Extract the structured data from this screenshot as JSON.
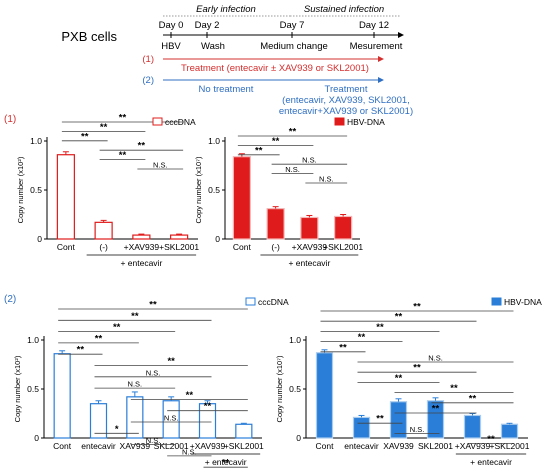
{
  "timeline": {
    "cells_label": "PXB cells",
    "phases": [
      "Early infection",
      "Sustained infection"
    ],
    "days": [
      "Day 0",
      "Day 2",
      "Day 7",
      "Day 12"
    ],
    "steps": [
      "HBV",
      "Wash",
      "Medium change",
      "Mesurement"
    ],
    "protocol1": {
      "marker": "(1)",
      "text": "Treatment (entecavir ± XAV939 or SKL2001)"
    },
    "protocol2": {
      "marker": "(2)",
      "no_treatment": "No treatment",
      "text_lines": [
        "Treatment",
        "(entecavir, XAV939, SKL2001,",
        "entecavir+XAV939 or SKL2001)"
      ]
    }
  },
  "section_markers": [
    "(1)",
    "(2)"
  ],
  "colors": {
    "red": "#e01b1b",
    "red_light": "#f4b6b6",
    "blue": "#2a7ed8",
    "blue_light": "#a8cbee",
    "protocol1": "#d42f2f",
    "protocol2": "#2f6fc2",
    "sig_line": "#444444"
  },
  "chart_data": [
    {
      "id": "p1-cccdna",
      "type": "bar",
      "panel": "(1)",
      "legend": "cccDNA",
      "legend_placement": "top-right",
      "style": "outline",
      "color": "#e01b1b",
      "ylabel": "Copy number (x10²)",
      "ylim": [
        0,
        1.0
      ],
      "yticks": [
        "0",
        "0.5",
        "1.0"
      ],
      "categories": [
        "Cont",
        "(-)",
        "+XAV939",
        "+SKL2001"
      ],
      "group_label": "+ entecavir",
      "group_span": [
        1,
        3
      ],
      "values": [
        0.86,
        0.17,
        0.04,
        0.04
      ],
      "errors": [
        0.03,
        0.02,
        0.01,
        0.01
      ],
      "significance": [
        {
          "from": 0,
          "to": 3,
          "label": "**"
        },
        {
          "from": 0,
          "to": 2,
          "label": "**"
        },
        {
          "from": 0,
          "to": 1,
          "label": "**"
        },
        {
          "from": 1,
          "to": 3,
          "label": "**"
        },
        {
          "from": 1,
          "to": 2,
          "label": "**"
        },
        {
          "from": 2,
          "to": 3,
          "label": "N.S."
        }
      ]
    },
    {
      "id": "p1-hbvdna",
      "type": "bar",
      "panel": "(1)",
      "legend": "HBV-DNA",
      "legend_placement": "top-right",
      "style": "filled",
      "color": "#e01b1b",
      "ylabel": "Copy number (x10⁷)",
      "ylim": [
        0,
        1.0
      ],
      "yticks": [
        "0",
        "0.5",
        "1.0"
      ],
      "categories": [
        "Cont",
        "(-)",
        "+XAV939",
        "+SKL2001"
      ],
      "group_label": "+ entecavir",
      "group_span": [
        1,
        3
      ],
      "values": [
        0.84,
        0.31,
        0.22,
        0.23
      ],
      "errors": [
        0.03,
        0.02,
        0.02,
        0.02
      ],
      "significance": [
        {
          "from": 0,
          "to": 3,
          "label": "**"
        },
        {
          "from": 0,
          "to": 2,
          "label": "**"
        },
        {
          "from": 0,
          "to": 1,
          "label": "**"
        },
        {
          "from": 1,
          "to": 3,
          "label": "N.S."
        },
        {
          "from": 1,
          "to": 2,
          "label": "N.S."
        },
        {
          "from": 2,
          "to": 3,
          "label": "N.S."
        }
      ]
    },
    {
      "id": "p2-cccdna",
      "type": "bar",
      "panel": "(2)",
      "legend": "cccDNA",
      "legend_placement": "top-right",
      "style": "outline",
      "color": "#2a7ed8",
      "ylabel": "Copy number (x10²)",
      "ylim": [
        0,
        1.0
      ],
      "yticks": [
        "0",
        "0.5",
        "1.0"
      ],
      "categories": [
        "Cont",
        "entecavir",
        "XAV939",
        "SKL2001",
        "+XAV939",
        "+SKL2001"
      ],
      "group_label": "+ entecavir",
      "group_span": [
        4,
        5
      ],
      "values": [
        0.86,
        0.35,
        0.42,
        0.38,
        0.35,
        0.14
      ],
      "errors": [
        0.03,
        0.03,
        0.05,
        0.04,
        0.03,
        0.01
      ],
      "significance": [
        {
          "from": 0,
          "to": 5,
          "label": "**"
        },
        {
          "from": 0,
          "to": 4,
          "label": "**"
        },
        {
          "from": 0,
          "to": 3,
          "label": "**"
        },
        {
          "from": 0,
          "to": 2,
          "label": "**"
        },
        {
          "from": 0,
          "to": 1,
          "label": "**"
        },
        {
          "from": 1,
          "to": 5,
          "label": "**"
        },
        {
          "from": 1,
          "to": 4,
          "label": "N.S."
        },
        {
          "from": 1,
          "to": 3,
          "label": "N.S."
        },
        {
          "from": 2,
          "to": 5,
          "label": "**"
        },
        {
          "from": 3,
          "to": 5,
          "label": "**"
        },
        {
          "from": 2,
          "to": 4,
          "label": "N.S."
        },
        {
          "from": 1,
          "to": 2,
          "label": "*"
        },
        {
          "from": 2,
          "to": 3,
          "label": "N.S."
        },
        {
          "from": 3,
          "to": 4,
          "label": "N.S."
        },
        {
          "from": 4,
          "to": 5,
          "label": "**"
        }
      ]
    },
    {
      "id": "p2-hbvdna",
      "type": "bar",
      "panel": "(2)",
      "legend": "HBV-DNA",
      "legend_placement": "top-right",
      "style": "filled",
      "color": "#2a7ed8",
      "ylabel": "Copy number (x10⁷)",
      "ylim": [
        0,
        1.0
      ],
      "yticks": [
        "0",
        "0.5",
        "1.0"
      ],
      "categories": [
        "Cont",
        "entecavir",
        "XAV939",
        "SKL2001",
        "+XAV939",
        "+SKL2001"
      ],
      "group_label": "+ entecavir",
      "group_span": [
        4,
        5
      ],
      "values": [
        0.87,
        0.21,
        0.37,
        0.38,
        0.23,
        0.14
      ],
      "errors": [
        0.03,
        0.02,
        0.03,
        0.03,
        0.02,
        0.01
      ],
      "significance": [
        {
          "from": 0,
          "to": 5,
          "label": "**"
        },
        {
          "from": 0,
          "to": 4,
          "label": "**"
        },
        {
          "from": 0,
          "to": 3,
          "label": "**"
        },
        {
          "from": 0,
          "to": 2,
          "label": "**"
        },
        {
          "from": 0,
          "to": 1,
          "label": "**"
        },
        {
          "from": 1,
          "to": 5,
          "label": "N.S."
        },
        {
          "from": 1,
          "to": 4,
          "label": "**"
        },
        {
          "from": 1,
          "to": 3,
          "label": "**"
        },
        {
          "from": 2,
          "to": 5,
          "label": "**"
        },
        {
          "from": 3,
          "to": 5,
          "label": "**"
        },
        {
          "from": 2,
          "to": 4,
          "label": "**"
        },
        {
          "from": 1,
          "to": 2,
          "label": "**"
        },
        {
          "from": 2,
          "to": 3,
          "label": "N.S."
        },
        {
          "from": 4,
          "to": 5,
          "label": "**"
        }
      ]
    }
  ]
}
